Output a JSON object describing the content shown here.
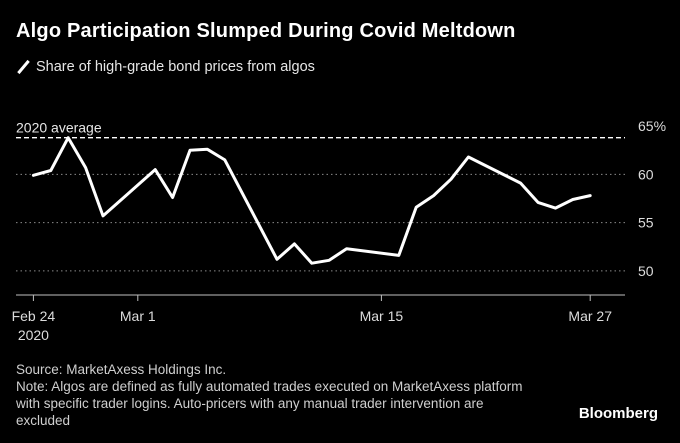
{
  "title": "Algo Participation Slumped During Covid Meltdown",
  "legend": {
    "label": "Share of high-grade bond prices from algos"
  },
  "source": "Source: MarketAxess Holdings Inc.",
  "note": "Note: Algos are defined as fully automated trades executed on MarketAxess platform with specific trader logins. Auto-pricers with any manual trader intervention are excluded",
  "brand": "Bloomberg",
  "colors": {
    "background": "#000000",
    "line": "#ffffff",
    "grid": "#8a8a8a",
    "text": "#ffffff"
  },
  "chart_data": {
    "type": "line",
    "title": "Algo Participation Slumped During Covid Meltdown",
    "xlabel": "",
    "ylabel": "",
    "ylim": [
      47.5,
      67.5
    ],
    "yticks": [
      {
        "value": 65,
        "label": "65%"
      },
      {
        "value": 60,
        "label": "60"
      },
      {
        "value": 55,
        "label": "55"
      },
      {
        "value": 50,
        "label": "50"
      }
    ],
    "xticks": [
      {
        "date": "2020-02-24",
        "label": "Feb 24",
        "sublabel": "2020"
      },
      {
        "date": "2020-03-01",
        "label": "Mar 1",
        "sublabel": ""
      },
      {
        "date": "2020-03-15",
        "label": "Mar 15",
        "sublabel": ""
      },
      {
        "date": "2020-03-27",
        "label": "Mar 27",
        "sublabel": ""
      }
    ],
    "xlim": [
      "2020-02-23",
      "2020-03-29"
    ],
    "grid": true,
    "legend_position": "top-left",
    "series": [
      {
        "name": "Share of high-grade bond prices from algos",
        "points": [
          {
            "x": "2020-02-24",
            "y": 59.9
          },
          {
            "x": "2020-02-25",
            "y": 60.4
          },
          {
            "x": "2020-02-26",
            "y": 63.8
          },
          {
            "x": "2020-02-27",
            "y": 60.7
          },
          {
            "x": "2020-02-28",
            "y": 55.7
          },
          {
            "x": "2020-03-02",
            "y": 60.5
          },
          {
            "x": "2020-03-03",
            "y": 57.6
          },
          {
            "x": "2020-03-04",
            "y": 62.5
          },
          {
            "x": "2020-03-05",
            "y": 62.6
          },
          {
            "x": "2020-03-06",
            "y": 61.5
          },
          {
            "x": "2020-03-09",
            "y": 51.2
          },
          {
            "x": "2020-03-10",
            "y": 52.8
          },
          {
            "x": "2020-03-11",
            "y": 50.8
          },
          {
            "x": "2020-03-12",
            "y": 51.1
          },
          {
            "x": "2020-03-13",
            "y": 52.3
          },
          {
            "x": "2020-03-16",
            "y": 51.6
          },
          {
            "x": "2020-03-17",
            "y": 56.6
          },
          {
            "x": "2020-03-18",
            "y": 57.8
          },
          {
            "x": "2020-03-19",
            "y": 59.5
          },
          {
            "x": "2020-03-20",
            "y": 61.8
          },
          {
            "x": "2020-03-23",
            "y": 59.1
          },
          {
            "x": "2020-03-24",
            "y": 57.1
          },
          {
            "x": "2020-03-25",
            "y": 56.5
          },
          {
            "x": "2020-03-26",
            "y": 57.4
          },
          {
            "x": "2020-03-27",
            "y": 57.8
          }
        ]
      }
    ],
    "reference_lines": [
      {
        "label": "2020 average",
        "y": 63.8,
        "style": "dashed"
      }
    ]
  }
}
